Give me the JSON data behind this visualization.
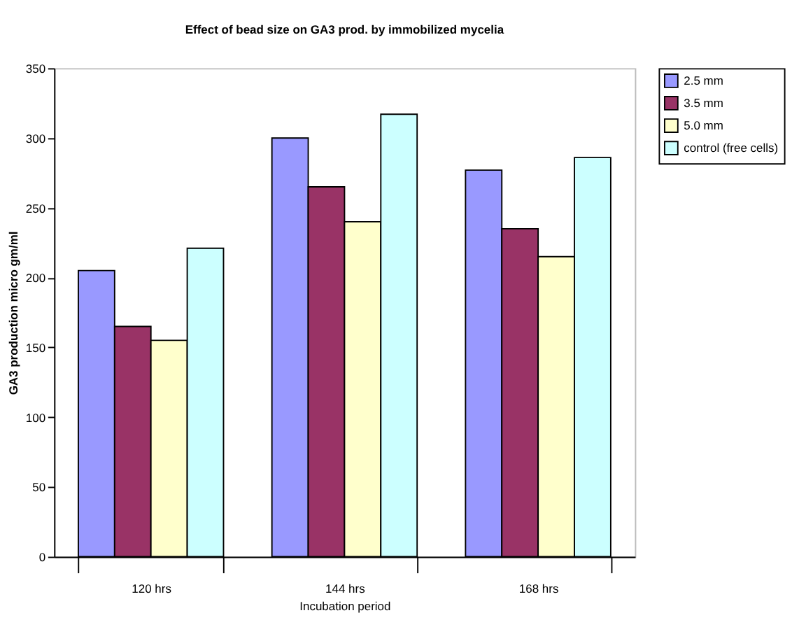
{
  "chart_data": {
    "type": "bar",
    "title": "Effect of bead size on GA3 prod. by immobilized mycelia",
    "xlabel": "Incubation period",
    "ylabel": "GA3 production micro gm/ml",
    "categories": [
      "120 hrs",
      "144 hrs",
      "168 hrs"
    ],
    "series": [
      {
        "name": "2.5 mm",
        "color": "#9999ff",
        "values": [
          205,
          300,
          277
        ]
      },
      {
        "name": "3.5 mm",
        "color": "#993366",
        "values": [
          165,
          265,
          235
        ]
      },
      {
        "name": "5.0 mm",
        "color": "#ffffcc",
        "values": [
          155,
          240,
          215
        ]
      },
      {
        "name": "control (free cells)",
        "color": "#ccffff",
        "values": [
          221,
          317,
          286
        ]
      }
    ],
    "ylim": [
      0,
      350
    ],
    "yticks": [
      0,
      50,
      100,
      150,
      200,
      250,
      300,
      350
    ],
    "grid": false,
    "legend": "right"
  }
}
